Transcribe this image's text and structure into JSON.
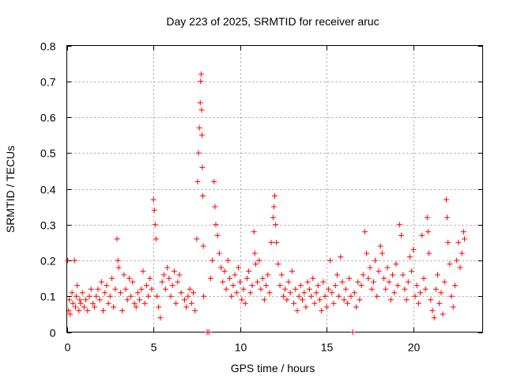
{
  "chart_data": {
    "type": "scatter",
    "title": "Day 223 of 2025, SRMTID for receiver aruc",
    "xlabel": "GPS time / hours",
    "ylabel": "SRMTID / TECUs",
    "xlim": [
      0,
      24
    ],
    "ylim": [
      0,
      0.8
    ],
    "grid": true,
    "marker": "+",
    "colors": {
      "series": "#ff0000",
      "axis": "#000000",
      "grid": "#a0a0a0"
    },
    "x_ticks": [
      {
        "value": 0,
        "label": "0"
      },
      {
        "value": 5,
        "label": "5"
      },
      {
        "value": 10,
        "label": "10"
      },
      {
        "value": 15,
        "label": "15"
      },
      {
        "value": 20,
        "label": "20"
      }
    ],
    "y_ticks": [
      {
        "value": 0,
        "label": "0"
      },
      {
        "value": 0.1,
        "label": "0.1"
      },
      {
        "value": 0.2,
        "label": "0.2"
      },
      {
        "value": 0.3,
        "label": "0.3"
      },
      {
        "value": 0.4,
        "label": "0.4"
      },
      {
        "value": 0.5,
        "label": "0.5"
      },
      {
        "value": 0.6,
        "label": "0.6"
      },
      {
        "value": 0.7,
        "label": "0.7"
      },
      {
        "value": 0.8,
        "label": "0.8"
      }
    ],
    "series": [
      {
        "name": "SRMTID",
        "points": [
          [
            0.05,
            0.2
          ],
          [
            0.1,
            0.06
          ],
          [
            0.15,
            0.09
          ],
          [
            0.2,
            0.05
          ],
          [
            0.3,
            0.11
          ],
          [
            0.35,
            0.08
          ],
          [
            0.45,
            0.2
          ],
          [
            0.5,
            0.07
          ],
          [
            0.55,
            0.1
          ],
          [
            0.6,
            0.13
          ],
          [
            0.7,
            0.06
          ],
          [
            0.75,
            0.09
          ],
          [
            0.8,
            0.08
          ],
          [
            0.9,
            0.11
          ],
          [
            1.0,
            0.07
          ],
          [
            1.1,
            0.09
          ],
          [
            1.2,
            0.06
          ],
          [
            1.3,
            0.1
          ],
          [
            1.4,
            0.12
          ],
          [
            1.5,
            0.08
          ],
          [
            1.6,
            0.07
          ],
          [
            1.7,
            0.1
          ],
          [
            1.8,
            0.12
          ],
          [
            1.9,
            0.09
          ],
          [
            2.0,
            0.14
          ],
          [
            2.1,
            0.06
          ],
          [
            2.2,
            0.11
          ],
          [
            2.3,
            0.13
          ],
          [
            2.4,
            0.08
          ],
          [
            2.5,
            0.1
          ],
          [
            2.6,
            0.15
          ],
          [
            2.7,
            0.07
          ],
          [
            2.8,
            0.12
          ],
          [
            2.9,
            0.26
          ],
          [
            2.95,
            0.2
          ],
          [
            3.0,
            0.18
          ],
          [
            3.1,
            0.11
          ],
          [
            3.2,
            0.06
          ],
          [
            3.3,
            0.16
          ],
          [
            3.4,
            0.12
          ],
          [
            3.5,
            0.09
          ],
          [
            3.6,
            0.15
          ],
          [
            3.7,
            0.1
          ],
          [
            3.8,
            0.14
          ],
          [
            3.9,
            0.08
          ],
          [
            4.0,
            0.07
          ],
          [
            4.1,
            0.11
          ],
          [
            4.2,
            0.09
          ],
          [
            4.3,
            0.12
          ],
          [
            4.4,
            0.17
          ],
          [
            4.5,
            0.08
          ],
          [
            4.6,
            0.13
          ],
          [
            4.7,
            0.1
          ],
          [
            4.8,
            0.15
          ],
          [
            4.9,
            0.12
          ],
          [
            5.0,
            0.37
          ],
          [
            5.05,
            0.34
          ],
          [
            5.1,
            0.3
          ],
          [
            5.15,
            0.26
          ],
          [
            5.2,
            0.1
          ],
          [
            5.3,
            0.07
          ],
          [
            5.4,
            0.04
          ],
          [
            5.5,
            0.14
          ],
          [
            5.6,
            0.16
          ],
          [
            5.7,
            0.12
          ],
          [
            5.8,
            0.18
          ],
          [
            5.9,
            0.15
          ],
          [
            6.0,
            0.1
          ],
          [
            6.1,
            0.13
          ],
          [
            6.2,
            0.17
          ],
          [
            6.3,
            0.08
          ],
          [
            6.4,
            0.14
          ],
          [
            6.5,
            0.16
          ],
          [
            6.6,
            0.11
          ],
          [
            6.8,
            0.09
          ],
          [
            6.9,
            0.07
          ],
          [
            7.0,
            0.1
          ],
          [
            7.1,
            0.12
          ],
          [
            7.2,
            0.08
          ],
          [
            7.3,
            0.11
          ],
          [
            7.4,
            0.06
          ],
          [
            7.5,
            0.26
          ],
          [
            7.55,
            0.42
          ],
          [
            7.6,
            0.5
          ],
          [
            7.65,
            0.57
          ],
          [
            7.7,
            0.64
          ],
          [
            7.72,
            0.7
          ],
          [
            7.75,
            0.72
          ],
          [
            7.78,
            0.62
          ],
          [
            7.8,
            0.55
          ],
          [
            7.82,
            0.46
          ],
          [
            7.85,
            0.38
          ],
          [
            7.88,
            0.24
          ],
          [
            7.9,
            0.1
          ],
          [
            8.1,
            0.0
          ],
          [
            8.2,
            0.0
          ],
          [
            8.3,
            0.15
          ],
          [
            8.4,
            0.2
          ],
          [
            8.5,
            0.42
          ],
          [
            8.55,
            0.35
          ],
          [
            8.6,
            0.3
          ],
          [
            8.7,
            0.27
          ],
          [
            8.8,
            0.22
          ],
          [
            8.9,
            0.18
          ],
          [
            9.0,
            0.14
          ],
          [
            9.1,
            0.17
          ],
          [
            9.2,
            0.12
          ],
          [
            9.3,
            0.2
          ],
          [
            9.4,
            0.15
          ],
          [
            9.5,
            0.1
          ],
          [
            9.6,
            0.13
          ],
          [
            9.7,
            0.16
          ],
          [
            9.8,
            0.11
          ],
          [
            9.9,
            0.18
          ],
          [
            10.0,
            0.14
          ],
          [
            10.1,
            0.09
          ],
          [
            10.2,
            0.12
          ],
          [
            10.3,
            0.08
          ],
          [
            10.4,
            0.15
          ],
          [
            10.5,
            0.17
          ],
          [
            10.6,
            0.11
          ],
          [
            10.7,
            0.13
          ],
          [
            10.8,
            0.28
          ],
          [
            10.85,
            0.22
          ],
          [
            10.9,
            0.19
          ],
          [
            11.0,
            0.14
          ],
          [
            11.1,
            0.2
          ],
          [
            11.2,
            0.12
          ],
          [
            11.3,
            0.15
          ],
          [
            11.4,
            0.09
          ],
          [
            11.5,
            0.13
          ],
          [
            11.6,
            0.16
          ],
          [
            11.7,
            0.11
          ],
          [
            11.8,
            0.25
          ],
          [
            11.9,
            0.32
          ],
          [
            11.95,
            0.35
          ],
          [
            12.0,
            0.38
          ],
          [
            12.05,
            0.3
          ],
          [
            12.1,
            0.25
          ],
          [
            12.2,
            0.19
          ],
          [
            12.3,
            0.13
          ],
          [
            12.4,
            0.16
          ],
          [
            12.5,
            0.1
          ],
          [
            12.6,
            0.12
          ],
          [
            12.7,
            0.09
          ],
          [
            12.8,
            0.14
          ],
          [
            12.9,
            0.11
          ],
          [
            13.0,
            0.17
          ],
          [
            13.1,
            0.08
          ],
          [
            13.2,
            0.12
          ],
          [
            13.3,
            0.06
          ],
          [
            13.4,
            0.1
          ],
          [
            13.5,
            0.13
          ],
          [
            13.6,
            0.09
          ],
          [
            13.7,
            0.11
          ],
          [
            13.8,
            0.07
          ],
          [
            13.9,
            0.14
          ],
          [
            14.0,
            0.12
          ],
          [
            14.1,
            0.1
          ],
          [
            14.2,
            0.15
          ],
          [
            14.3,
            0.08
          ],
          [
            14.4,
            0.11
          ],
          [
            14.5,
            0.13
          ],
          [
            14.6,
            0.09
          ],
          [
            14.7,
            0.06
          ],
          [
            14.8,
            0.14
          ],
          [
            14.9,
            0.1
          ],
          [
            15.0,
            0.07
          ],
          [
            15.1,
            0.12
          ],
          [
            15.2,
            0.2
          ],
          [
            15.3,
            0.11
          ],
          [
            15.4,
            0.08
          ],
          [
            15.5,
            0.13
          ],
          [
            15.6,
            0.16
          ],
          [
            15.7,
            0.1
          ],
          [
            15.8,
            0.21
          ],
          [
            15.9,
            0.14
          ],
          [
            16.0,
            0.09
          ],
          [
            16.1,
            0.12
          ],
          [
            16.2,
            0.08
          ],
          [
            16.3,
            0.15
          ],
          [
            16.4,
            0.1
          ],
          [
            16.5,
            0.0
          ],
          [
            16.6,
            0.11
          ],
          [
            16.7,
            0.07
          ],
          [
            16.8,
            0.14
          ],
          [
            16.9,
            0.09
          ],
          [
            17.0,
            0.13
          ],
          [
            17.1,
            0.16
          ],
          [
            17.2,
            0.28
          ],
          [
            17.3,
            0.22
          ],
          [
            17.4,
            0.15
          ],
          [
            17.5,
            0.18
          ],
          [
            17.6,
            0.12
          ],
          [
            17.7,
            0.14
          ],
          [
            17.8,
            0.2
          ],
          [
            17.9,
            0.1
          ],
          [
            18.0,
            0.17
          ],
          [
            18.1,
            0.24
          ],
          [
            18.2,
            0.22
          ],
          [
            18.3,
            0.15
          ],
          [
            18.4,
            0.12
          ],
          [
            18.5,
            0.18
          ],
          [
            18.6,
            0.14
          ],
          [
            18.7,
            0.09
          ],
          [
            18.8,
            0.16
          ],
          [
            18.9,
            0.11
          ],
          [
            19.0,
            0.19
          ],
          [
            19.1,
            0.13
          ],
          [
            19.2,
            0.3
          ],
          [
            19.3,
            0.27
          ],
          [
            19.4,
            0.16
          ],
          [
            19.5,
            0.12
          ],
          [
            19.6,
            0.09
          ],
          [
            19.7,
            0.14
          ],
          [
            19.8,
            0.21
          ],
          [
            19.9,
            0.17
          ],
          [
            20.0,
            0.23
          ],
          [
            20.1,
            0.1
          ],
          [
            20.2,
            0.13
          ],
          [
            20.3,
            0.08
          ],
          [
            20.4,
            0.11
          ],
          [
            20.5,
            0.27
          ],
          [
            20.6,
            0.15
          ],
          [
            20.7,
            0.12
          ],
          [
            20.8,
            0.32
          ],
          [
            20.85,
            0.28
          ],
          [
            20.9,
            0.22
          ],
          [
            21.0,
            0.09
          ],
          [
            21.1,
            0.06
          ],
          [
            21.2,
            0.04
          ],
          [
            21.3,
            0.12
          ],
          [
            21.4,
            0.16
          ],
          [
            21.5,
            0.08
          ],
          [
            21.6,
            0.11
          ],
          [
            21.7,
            0.05
          ],
          [
            21.8,
            0.14
          ],
          [
            21.9,
            0.37
          ],
          [
            21.95,
            0.32
          ],
          [
            22.0,
            0.25
          ],
          [
            22.1,
            0.19
          ],
          [
            22.2,
            0.1
          ],
          [
            22.3,
            0.07
          ],
          [
            22.4,
            0.13
          ],
          [
            22.5,
            0.2
          ],
          [
            22.6,
            0.25
          ],
          [
            22.7,
            0.18
          ],
          [
            22.8,
            0.22
          ],
          [
            22.9,
            0.28
          ],
          [
            22.95,
            0.26
          ]
        ]
      }
    ]
  }
}
